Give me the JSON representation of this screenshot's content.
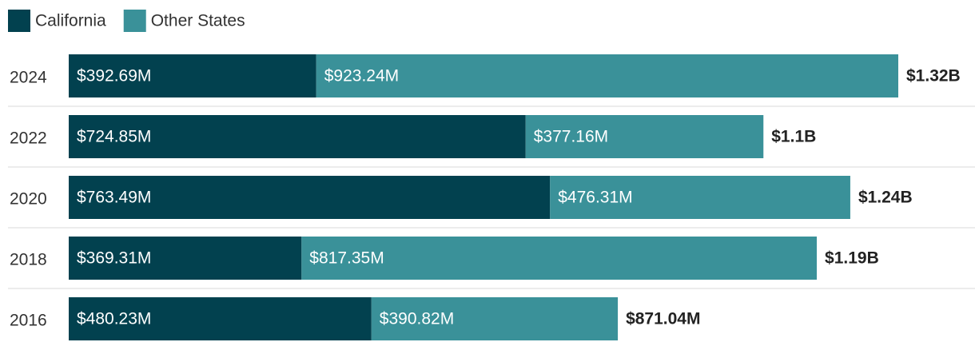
{
  "chart_data": {
    "type": "stacked-bar-horizontal",
    "categories": [
      "2024",
      "2022",
      "2020",
      "2018",
      "2016"
    ],
    "series": [
      {
        "name": "California",
        "color": "#02414f",
        "values": [
          392690000,
          724850000,
          763490000,
          369310000,
          480230000
        ],
        "value_labels": [
          "$392.69M",
          "$724.85M",
          "$763.49M",
          "$369.31M",
          "$480.23M"
        ]
      },
      {
        "name": "Other States",
        "color": "#3a9199",
        "values": [
          923240000,
          377160000,
          476310000,
          817350000,
          390820000
        ],
        "value_labels": [
          "$923.24M",
          "$377.16M",
          "$476.31M",
          "$817.35M",
          "$390.82M"
        ]
      }
    ],
    "totals": [
      1315930000,
      1102010000,
      1239800000,
      1186660000,
      871040000
    ],
    "total_labels": [
      "$1.32B",
      "$1.1B",
      "$1.24B",
      "$1.19B",
      "$871.04M"
    ]
  }
}
